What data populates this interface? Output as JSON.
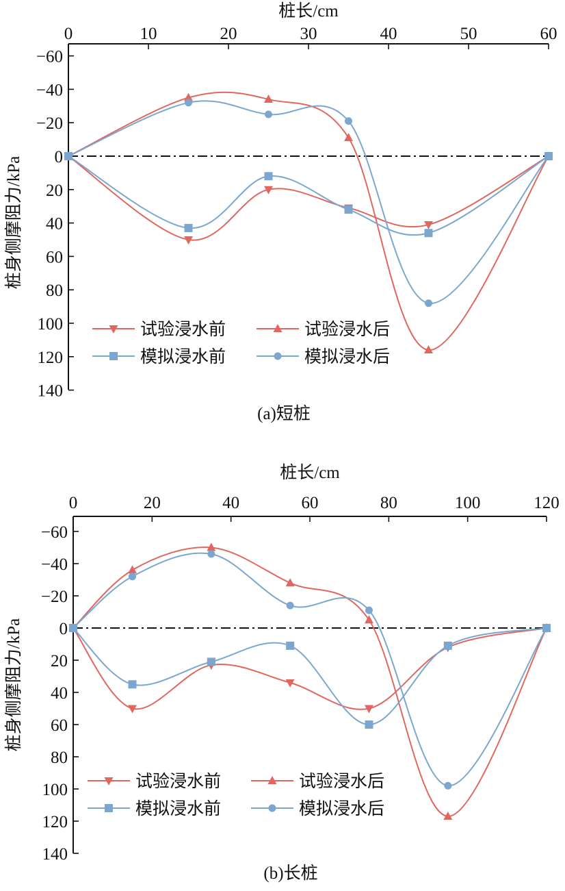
{
  "chart_data": [
    {
      "type": "line",
      "title": "(a)短桩",
      "xlabel": "桩长/cm",
      "ylabel": "桩身侧摩阻力/kPa",
      "xlim": [
        0,
        60
      ],
      "ylim": [
        -60,
        140
      ],
      "y_inverted": true,
      "x_axis_position": "top",
      "xticks": [
        0,
        10,
        20,
        30,
        40,
        50,
        60
      ],
      "yticks": [
        -60,
        -40,
        -20,
        0,
        20,
        40,
        60,
        80,
        100,
        120,
        140
      ],
      "reference_line": 0,
      "legend_placement": "bottom-left",
      "series": [
        {
          "name": "试验浸水前",
          "color": "#e0675f",
          "marker": "triangle-down",
          "x": [
            0,
            15,
            25,
            35,
            45,
            60
          ],
          "y": [
            0,
            50,
            20,
            31,
            41,
            0
          ]
        },
        {
          "name": "试验浸水后",
          "color": "#e0675f",
          "marker": "triangle-up",
          "x": [
            0,
            15,
            25,
            35,
            45,
            60
          ],
          "y": [
            0,
            -35,
            -34,
            -11,
            116,
            0
          ]
        },
        {
          "name": "模拟浸水前",
          "color": "#7aa6cf",
          "marker": "square",
          "x": [
            0,
            15,
            25,
            35,
            45,
            60
          ],
          "y": [
            0,
            43,
            12,
            32,
            46,
            0
          ]
        },
        {
          "name": "模拟浸水后",
          "color": "#7aa6cf",
          "marker": "circle",
          "x": [
            0,
            15,
            25,
            35,
            45,
            60
          ],
          "y": [
            0,
            -32,
            -25,
            -21,
            88,
            0
          ]
        }
      ]
    },
    {
      "type": "line",
      "title": "(b)长桩",
      "xlabel": "桩长/cm",
      "ylabel": "桩身侧摩阻力/kPa",
      "xlim": [
        0,
        120
      ],
      "ylim": [
        -60,
        140
      ],
      "y_inverted": true,
      "x_axis_position": "top",
      "xticks": [
        0,
        20,
        40,
        60,
        80,
        100,
        120
      ],
      "yticks": [
        -60,
        -40,
        -20,
        0,
        20,
        40,
        60,
        80,
        100,
        120,
        140
      ],
      "reference_line": 0,
      "legend_placement": "bottom-left",
      "series": [
        {
          "name": "试验浸水前",
          "color": "#e0675f",
          "marker": "triangle-down",
          "x": [
            0,
            15,
            35,
            55,
            75,
            95,
            120
          ],
          "y": [
            0,
            50,
            23,
            34,
            50,
            12,
            0
          ]
        },
        {
          "name": "试验浸水后",
          "color": "#e0675f",
          "marker": "triangle-up",
          "x": [
            0,
            15,
            35,
            55,
            75,
            95,
            120
          ],
          "y": [
            0,
            -36,
            -50,
            -28,
            -5,
            117,
            0
          ]
        },
        {
          "name": "模拟浸水前",
          "color": "#7aa6cf",
          "marker": "square",
          "x": [
            0,
            15,
            35,
            55,
            75,
            95,
            120
          ],
          "y": [
            0,
            35,
            21,
            11,
            60,
            11,
            0
          ]
        },
        {
          "name": "模拟浸水后",
          "color": "#7aa6cf",
          "marker": "circle",
          "x": [
            0,
            15,
            35,
            55,
            75,
            95,
            120
          ],
          "y": [
            0,
            -32,
            -46,
            -14,
            -11,
            98,
            0
          ]
        }
      ]
    }
  ]
}
